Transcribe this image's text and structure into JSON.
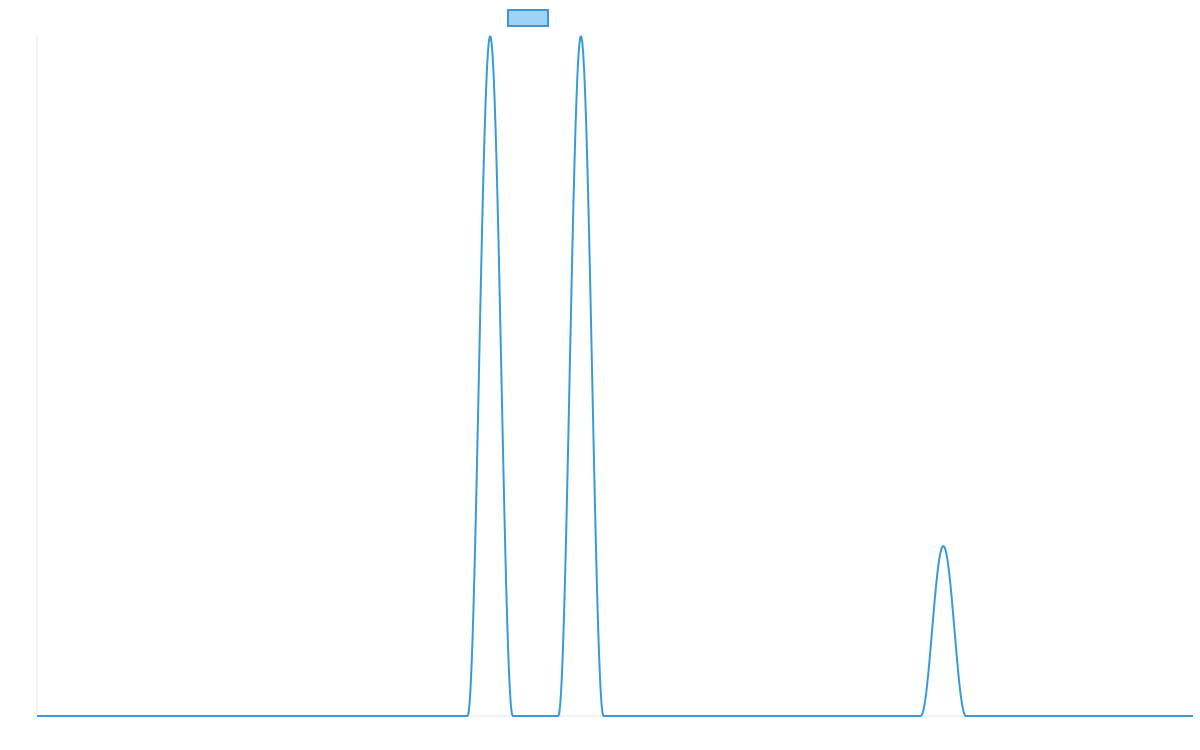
{
  "chart_data": {
    "type": "line",
    "title": "",
    "xlabel": "",
    "ylabel": "",
    "grid": false,
    "legend_position": "top-center",
    "colors": {
      "line": "#3a9ad9",
      "legend_fill": "#9fd3f5",
      "axis": "#e6e6e6",
      "background": "#ffffff"
    },
    "x_range": [
      0,
      100
    ],
    "y_range": [
      0,
      1
    ],
    "series": [
      {
        "label": "",
        "peaks": [
          {
            "center": 39.2,
            "half_width": 1.95,
            "height": 1.0
          },
          {
            "center": 47.05,
            "half_width": 1.95,
            "height": 1.0
          },
          {
            "center": 78.4,
            "half_width": 1.95,
            "height": 0.25
          }
        ]
      }
    ]
  }
}
